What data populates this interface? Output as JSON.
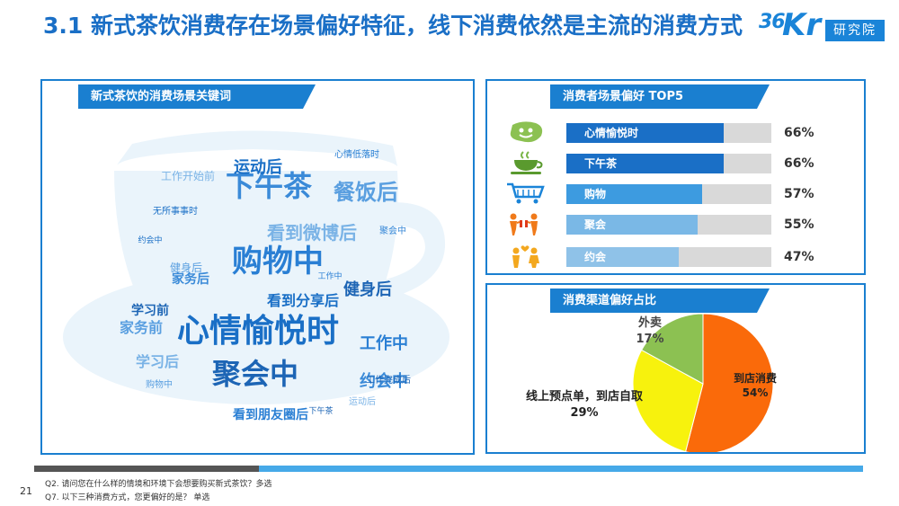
{
  "header": {
    "title": "3.1 新式茶饮消费存在场景偏好特征，线下消费依然是主流的消费方式",
    "logo_num": "36",
    "logo_kr": "Kr",
    "logo_badge": "研究院"
  },
  "cloud_panel": {
    "title": "新式茶饮的消费场景关键词",
    "words": [
      {
        "text": "心情愉悦时",
        "size": 36
      },
      {
        "text": "购物中",
        "size": 34
      },
      {
        "text": "聚会中",
        "size": 32
      },
      {
        "text": "下午茶",
        "size": 32
      },
      {
        "text": "餐饭后",
        "size": 24
      },
      {
        "text": "看到微博后",
        "size": 20
      },
      {
        "text": "运动后",
        "size": 18
      },
      {
        "text": "工作中",
        "size": 18
      },
      {
        "text": "健身后",
        "size": 18
      },
      {
        "text": "约会中",
        "size": 18
      },
      {
        "text": "家务前",
        "size": 16
      },
      {
        "text": "学习后",
        "size": 16
      },
      {
        "text": "看到分享后",
        "size": 16
      },
      {
        "text": "看到朋友圈后",
        "size": 14
      },
      {
        "text": "学习前",
        "size": 14
      },
      {
        "text": "家务后",
        "size": 14
      },
      {
        "text": "健身后",
        "size": 12
      },
      {
        "text": "工作开始前",
        "size": 12
      },
      {
        "text": "无所事事时",
        "size": 10
      },
      {
        "text": "心情低落时",
        "size": 10
      },
      {
        "text": "工作完成后",
        "size": 10
      },
      {
        "text": "聚会中",
        "size": 10
      },
      {
        "text": "购物中",
        "size": 10
      },
      {
        "text": "运动后",
        "size": 10
      },
      {
        "text": "约会中",
        "size": 9
      },
      {
        "text": "工作中",
        "size": 9
      },
      {
        "text": "下午茶",
        "size": 9
      }
    ]
  },
  "top5_panel": {
    "title": "消费者场景偏好 TOP5",
    "items": [
      {
        "label": "心情愉悦时",
        "value": 66,
        "display": "66%",
        "color": "#1a6fc6",
        "icon": "happy-face-icon"
      },
      {
        "label": "下午茶",
        "value": 66,
        "display": "66%",
        "color": "#1a6fc6",
        "icon": "teacup-icon"
      },
      {
        "label": "购物",
        "value": 57,
        "display": "57%",
        "color": "#3d9be0",
        "icon": "shopping-cart-icon"
      },
      {
        "label": "聚会",
        "value": 55,
        "display": "55%",
        "color": "#7ab8e6",
        "icon": "gathering-people-icon"
      },
      {
        "label": "约会",
        "value": 47,
        "display": "47%",
        "color": "#8fc2e8",
        "icon": "dating-couple-icon"
      }
    ]
  },
  "pie_panel": {
    "title": "消费渠道偏好占比",
    "labels": {
      "instore": {
        "name": "到店消费",
        "value": "54%"
      },
      "pickup": {
        "name": "线上预点单，到店自取",
        "value": "29%"
      },
      "delivery": {
        "name": "外卖",
        "value": "17%"
      }
    }
  },
  "chart_data": [
    {
      "type": "bar",
      "title": "消费者场景偏好 TOP5",
      "categories": [
        "心情愉悦时",
        "下午茶",
        "购物",
        "聚会",
        "约会"
      ],
      "values": [
        66,
        66,
        57,
        55,
        47
      ],
      "unit": "%"
    },
    {
      "type": "pie",
      "title": "消费渠道偏好占比",
      "categories": [
        "到店消费",
        "线上预点单，到店自取",
        "外卖"
      ],
      "values": [
        54,
        29,
        17
      ],
      "colors": [
        "#fa6a0a",
        "#f7f20d",
        "#8cc152"
      ]
    }
  ],
  "footer": {
    "page": "21",
    "notes": [
      "Q2. 请问您在什么样的情境和环境下会想要购买新式茶饮？多选",
      "Q7. 以下三种消费方式，您更偏好的是？ 单选"
    ]
  }
}
